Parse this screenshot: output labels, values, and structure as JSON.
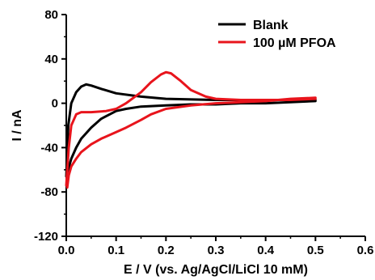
{
  "chart_data": {
    "type": "line",
    "xlabel": "E / V (vs. Ag/AgCl/LiCl 10 mM)",
    "ylabel": "I / nA",
    "xlim": [
      0.0,
      0.6
    ],
    "ylim": [
      -120,
      80
    ],
    "xticks": [
      "0.0",
      "0.1",
      "0.2",
      "0.3",
      "0.4",
      "0.5",
      "0.6"
    ],
    "yticks": [
      "80",
      "40",
      "0",
      "-40",
      "-80",
      "-120"
    ],
    "grid": false,
    "legend_position": "top-right",
    "series": [
      {
        "name": "Blank",
        "color": "#000000",
        "x": [
          0.0,
          0.004,
          0.01,
          0.02,
          0.03,
          0.04,
          0.05,
          0.07,
          0.1,
          0.15,
          0.2,
          0.3,
          0.4,
          0.5,
          0.5,
          0.45,
          0.4,
          0.35,
          0.3,
          0.25,
          0.2,
          0.15,
          0.12,
          0.1,
          0.07,
          0.05,
          0.03,
          0.02,
          0.01,
          0.005,
          0.001
        ],
        "y": [
          -66,
          -20,
          0,
          10,
          15,
          17,
          16,
          13,
          9,
          6,
          4,
          3,
          3,
          3,
          2,
          1,
          0,
          0,
          -1,
          -1,
          -2,
          -3,
          -5,
          -7,
          -14,
          -22,
          -32,
          -40,
          -50,
          -58,
          -66
        ]
      },
      {
        "name": "100 µM PFOA",
        "color": "#e8141c",
        "x": [
          0.0,
          0.005,
          0.01,
          0.02,
          0.03,
          0.05,
          0.08,
          0.1,
          0.12,
          0.15,
          0.17,
          0.19,
          0.2,
          0.21,
          0.23,
          0.25,
          0.28,
          0.3,
          0.35,
          0.4,
          0.45,
          0.5,
          0.5,
          0.45,
          0.4,
          0.35,
          0.3,
          0.25,
          0.2,
          0.17,
          0.15,
          0.12,
          0.1,
          0.07,
          0.05,
          0.03,
          0.02,
          0.01,
          0.005,
          0.002
        ],
        "y": [
          -74,
          -40,
          -20,
          -10,
          -8,
          -8,
          -7,
          -5,
          0,
          10,
          19,
          26,
          28,
          27,
          20,
          12,
          6,
          4,
          3,
          3,
          3,
          4,
          5,
          4,
          2,
          1,
          0,
          -2,
          -5,
          -10,
          -15,
          -22,
          -26,
          -32,
          -37,
          -44,
          -50,
          -57,
          -65,
          -76
        ]
      }
    ]
  }
}
